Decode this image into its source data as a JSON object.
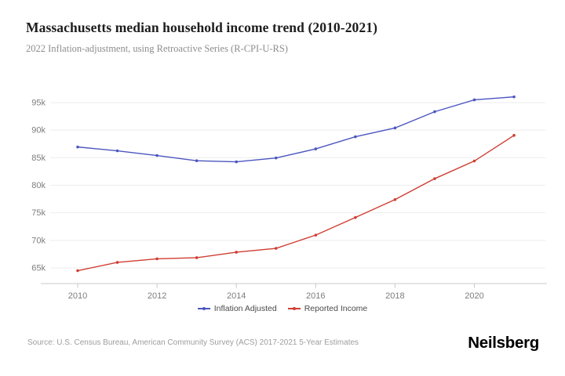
{
  "header": {
    "title": "Massachusetts median household income trend (2010-2021)",
    "subtitle": "2022 Inflation-adjustment, using Retroactive Series (R-CPI-U-RS)"
  },
  "chart_data": {
    "type": "line",
    "x": [
      2010,
      2011,
      2012,
      2013,
      2014,
      2015,
      2016,
      2017,
      2018,
      2019,
      2020,
      2021
    ],
    "series": [
      {
        "name": "Inflation Adjusted",
        "color": "#4c56c0",
        "values": [
          86950,
          86250,
          85400,
          84450,
          84250,
          84950,
          86600,
          88800,
          90400,
          93350,
          95500,
          96050
        ]
      },
      {
        "name": "Reported Income",
        "color": "#cf3e33",
        "values": [
          64500,
          66000,
          66650,
          66850,
          67850,
          68550,
          70950,
          74150,
          77400,
          81200,
          84400,
          89050
        ]
      }
    ],
    "title": "Massachusetts median household income trend (2010-2021)",
    "xlabel": "",
    "ylabel": "",
    "ylim": [
      62000,
      98000
    ],
    "yticks": [
      65000,
      70000,
      75000,
      80000,
      85000,
      90000,
      95000
    ],
    "ytick_labels": [
      "65k",
      "70k",
      "75k",
      "80k",
      "85k",
      "90k",
      "95k"
    ],
    "xticks": [
      2010,
      2012,
      2014,
      2016,
      2018,
      2020
    ],
    "grid": "horizontal-only",
    "legend_position": "bottom-center"
  },
  "footer": {
    "source": "Source: U.S. Census Bureau, American Community Survey (ACS) 2017-2021 5-Year Estimates",
    "brand": "Neilsberg"
  }
}
